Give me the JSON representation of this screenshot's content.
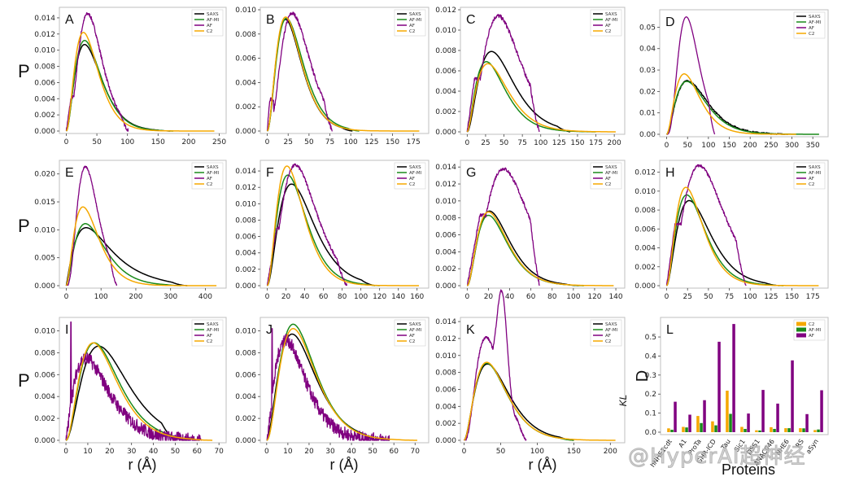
{
  "figure": {
    "row_ylabel": "P",
    "xlabel": "r (Å)",
    "watermark": "@HyperAI超神经",
    "colors": {
      "SAXS": "#000000",
      "AF-MI": "#1a8a1a",
      "AF": "#800080",
      "C2": "#f5a800"
    }
  },
  "chart_data": [
    {
      "panel": "A",
      "type": "line",
      "xlim": [
        0,
        250
      ],
      "ylim": [
        0,
        0.015
      ],
      "xticks": [
        0,
        50,
        100,
        150,
        200,
        250
      ],
      "xtick_labels": [
        "0",
        "50",
        "100",
        "150",
        "200",
        "250"
      ],
      "yticks": [
        0,
        0.002,
        0.004,
        0.006,
        0.008,
        0.01,
        0.012,
        0.014
      ],
      "ytick_labels": [
        "0.000",
        "0.002",
        "0.004",
        "0.006",
        "0.008",
        "0.010",
        "0.012",
        "0.014"
      ],
      "legend": [
        "SAXS",
        "AF-MI",
        "AF",
        "C2"
      ],
      "legend_loc": "top-right",
      "series": [
        {
          "name": "SAXS",
          "peak_x": 30,
          "peak_y": 0.0107,
          "x_end": 170,
          "shape": 1.9
        },
        {
          "name": "AF-MI",
          "peak_x": 30,
          "peak_y": 0.0112,
          "x_end": 175,
          "shape": 2.0
        },
        {
          "name": "AF",
          "peak_x": 35,
          "peak_y": 0.0145,
          "x_end": 102,
          "shape": 3.2,
          "noise": 0.0004,
          "shoulder": [
            8,
            0.0042
          ]
        },
        {
          "name": "C2",
          "peak_x": 28,
          "peak_y": 0.0122,
          "x_end": 242,
          "shape": 2.1
        }
      ]
    },
    {
      "panel": "B",
      "type": "line",
      "xlim": [
        0,
        185
      ],
      "ylim": [
        0,
        0.01
      ],
      "xticks": [
        0,
        25,
        50,
        75,
        100,
        125,
        150,
        175
      ],
      "xtick_labels": [
        "0",
        "25",
        "50",
        "75",
        "100",
        "125",
        "150",
        "175"
      ],
      "yticks": [
        0,
        0.002,
        0.004,
        0.006,
        0.008,
        0.01
      ],
      "ytick_labels": [
        "0.000",
        "0.002",
        "0.004",
        "0.006",
        "0.008",
        "0.010"
      ],
      "legend": [
        "SAXS",
        "AF-MI",
        "AF",
        "C2"
      ],
      "legend_loc": "top-right",
      "series": [
        {
          "name": "SAXS",
          "peak_x": 22,
          "peak_y": 0.0092,
          "x_end": 102,
          "shape": 2.1
        },
        {
          "name": "AF-MI",
          "peak_x": 23,
          "peak_y": 0.0093,
          "x_end": 110,
          "shape": 2.1
        },
        {
          "name": "AF",
          "peak_x": 30,
          "peak_y": 0.0097,
          "x_end": 78,
          "shape": 3.0,
          "noise": 0.0003,
          "shoulder": [
            3,
            0.0026
          ]
        },
        {
          "name": "C2",
          "peak_x": 22,
          "peak_y": 0.0094,
          "x_end": 182,
          "shape": 2.1
        }
      ]
    },
    {
      "panel": "C",
      "type": "line",
      "xlim": [
        0,
        205
      ],
      "ylim": [
        0,
        0.012
      ],
      "xticks": [
        0,
        25,
        50,
        75,
        100,
        125,
        150,
        175,
        200
      ],
      "xtick_labels": [
        "0",
        "25",
        "50",
        "75",
        "100",
        "125",
        "150",
        "175",
        "200"
      ],
      "yticks": [
        0,
        0.002,
        0.004,
        0.006,
        0.008,
        0.01,
        0.012
      ],
      "ytick_labels": [
        "0.000",
        "0.002",
        "0.004",
        "0.006",
        "0.008",
        "0.010",
        "0.012"
      ],
      "legend": [
        "SAXS",
        "AF-MI",
        "AF",
        "C2"
      ],
      "legend_loc": "top-right",
      "series": [
        {
          "name": "SAXS",
          "peak_x": 33,
          "peak_y": 0.0079,
          "x_end": 140,
          "shape": 1.9
        },
        {
          "name": "AF-MI",
          "peak_x": 26,
          "peak_y": 0.0069,
          "x_end": 175,
          "shape": 1.7
        },
        {
          "name": "AF",
          "peak_x": 42,
          "peak_y": 0.0114,
          "x_end": 98,
          "shape": 2.8,
          "noise": 0.0004,
          "shoulder": [
            10,
            0.0052
          ]
        },
        {
          "name": "C2",
          "peak_x": 28,
          "peak_y": 0.0067,
          "x_end": 202,
          "shape": 1.7
        }
      ]
    },
    {
      "panel": "D",
      "type": "line",
      "xlim": [
        0,
        370
      ],
      "ylim": [
        0,
        0.057
      ],
      "xticks": [
        0,
        50,
        100,
        150,
        200,
        250,
        300,
        350
      ],
      "xtick_labels": [
        "0",
        "50",
        "100",
        "150",
        "200",
        "250",
        "300",
        "350"
      ],
      "yticks": [
        0,
        0.01,
        0.02,
        0.03,
        0.04,
        0.05
      ],
      "ytick_labels": [
        "0.00",
        "0.01",
        "0.02",
        "0.03",
        "0.04",
        "0.05"
      ],
      "legend": [
        "SAXS",
        "AF-MI",
        "AF",
        "C2"
      ],
      "legend_loc": "top-right",
      "series": [
        {
          "name": "SAXS",
          "peak_x": 50,
          "peak_y": 0.025,
          "x_end": 290,
          "shape": 1.8,
          "noise": 0.0006
        },
        {
          "name": "AF-MI",
          "peak_x": 48,
          "peak_y": 0.0247,
          "x_end": 365,
          "shape": 1.8
        },
        {
          "name": "AF",
          "peak_x": 47,
          "peak_y": 0.0548,
          "x_end": 115,
          "shape": 3.4
        },
        {
          "name": "C2",
          "peak_x": 42,
          "peak_y": 0.0282,
          "x_end": 310,
          "shape": 2.0
        }
      ]
    },
    {
      "panel": "E",
      "type": "line",
      "xlim": [
        0,
        440
      ],
      "ylim": [
        0,
        0.022
      ],
      "xticks": [
        0,
        100,
        200,
        300,
        400
      ],
      "xtick_labels": [
        "0",
        "100",
        "200",
        "300",
        "400"
      ],
      "yticks": [
        0,
        0.005,
        0.01,
        0.015,
        0.02
      ],
      "ytick_labels": [
        "0.000",
        "0.005",
        "0.010",
        "0.015",
        "0.020"
      ],
      "legend": [
        "SAXS",
        "AF-MI",
        "AF",
        "C2"
      ],
      "legend_loc": "top-right",
      "series": [
        {
          "name": "SAXS",
          "peak_x": 55,
          "peak_y": 0.0088,
          "x_end": 348,
          "shape": 1.2,
          "tail": 0.0025
        },
        {
          "name": "AF-MI",
          "peak_x": 55,
          "peak_y": 0.0111,
          "x_end": 330,
          "shape": 1.6
        },
        {
          "name": "AF",
          "peak_x": 55,
          "peak_y": 0.0213,
          "x_end": 145,
          "shape": 3.2,
          "noise": 0.0003
        },
        {
          "name": "C2",
          "peak_x": 48,
          "peak_y": 0.0141,
          "x_end": 432,
          "shape": 1.8
        }
      ]
    },
    {
      "panel": "F",
      "type": "line",
      "xlim": [
        0,
        165
      ],
      "ylim": [
        0,
        0.015
      ],
      "xticks": [
        0,
        20,
        40,
        60,
        80,
        100,
        120,
        140,
        160
      ],
      "xtick_labels": [
        "0",
        "20",
        "40",
        "60",
        "80",
        "100",
        "120",
        "140",
        "160"
      ],
      "yticks": [
        0,
        0.002,
        0.004,
        0.006,
        0.008,
        0.01,
        0.012,
        0.014
      ],
      "ytick_labels": [
        "0.000",
        "0.002",
        "0.004",
        "0.006",
        "0.008",
        "0.010",
        "0.012",
        "0.014"
      ],
      "legend": [
        "SAXS",
        "AF-MI",
        "AF",
        "C2"
      ],
      "legend_loc": "top-right",
      "series": [
        {
          "name": "SAXS",
          "peak_x": 26,
          "peak_y": 0.0124,
          "x_end": 115,
          "shape": 1.9
        },
        {
          "name": "AF-MI",
          "peak_x": 22,
          "peak_y": 0.0135,
          "x_end": 120,
          "shape": 2.0
        },
        {
          "name": "AF",
          "peak_x": 30,
          "peak_y": 0.0147,
          "x_end": 85,
          "shape": 2.6,
          "noise": 0.0004,
          "shoulder": [
            10,
            0.007
          ]
        },
        {
          "name": "C2",
          "peak_x": 21,
          "peak_y": 0.0146,
          "x_end": 162,
          "shape": 2.1
        }
      ]
    },
    {
      "panel": "G",
      "type": "line",
      "xlim": [
        0,
        142
      ],
      "ylim": [
        0,
        0.0145
      ],
      "xticks": [
        0,
        20,
        40,
        60,
        80,
        100,
        120,
        140
      ],
      "xtick_labels": [
        "0",
        "20",
        "40",
        "60",
        "80",
        "100",
        "120",
        "140"
      ],
      "yticks": [
        0,
        0.002,
        0.004,
        0.006,
        0.008,
        0.01,
        0.012,
        0.014
      ],
      "ytick_labels": [
        "0.000",
        "0.002",
        "0.004",
        "0.006",
        "0.008",
        "0.010",
        "0.012",
        "0.014"
      ],
      "legend": [
        "SAXS",
        "AF-MI",
        "AF",
        "C2"
      ],
      "legend_loc": "top-right",
      "series": [
        {
          "name": "SAXS",
          "peak_x": 21,
          "peak_y": 0.0088,
          "x_end": 105,
          "shape": 2.0
        },
        {
          "name": "AF-MI",
          "peak_x": 20,
          "peak_y": 0.0083,
          "x_end": 110,
          "shape": 2.0
        },
        {
          "name": "AF",
          "peak_x": 34,
          "peak_y": 0.0138,
          "x_end": 68,
          "shape": 3.0,
          "noise": 0.0004,
          "shoulder": [
            12,
            0.0083
          ]
        },
        {
          "name": "C2",
          "peak_x": 20,
          "peak_y": 0.0087,
          "x_end": 138,
          "shape": 2.0
        }
      ]
    },
    {
      "panel": "H",
      "type": "line",
      "xlim": [
        0,
        185
      ],
      "ylim": [
        0,
        0.013
      ],
      "xticks": [
        0,
        25,
        50,
        75,
        100,
        125,
        150,
        175
      ],
      "xtick_labels": [
        "0",
        "25",
        "50",
        "75",
        "100",
        "125",
        "150",
        "175"
      ],
      "yticks": [
        0,
        0.002,
        0.004,
        0.006,
        0.008,
        0.01,
        0.012
      ],
      "ytick_labels": [
        "0.000",
        "0.002",
        "0.004",
        "0.006",
        "0.008",
        "0.010",
        "0.012"
      ],
      "legend": [
        "SAXS",
        "AF-MI",
        "AF",
        "C2"
      ],
      "legend_loc": "top-right",
      "series": [
        {
          "name": "SAXS",
          "peak_x": 27,
          "peak_y": 0.009,
          "x_end": 135,
          "shape": 1.8
        },
        {
          "name": "AF-MI",
          "peak_x": 24,
          "peak_y": 0.0096,
          "x_end": 140,
          "shape": 1.9
        },
        {
          "name": "AF",
          "peak_x": 39,
          "peak_y": 0.0127,
          "x_end": 95,
          "shape": 2.6,
          "noise": 0.0003,
          "shoulder": [
            10,
            0.0065
          ]
        },
        {
          "name": "C2",
          "peak_x": 23,
          "peak_y": 0.0104,
          "x_end": 182,
          "shape": 2.0
        }
      ]
    },
    {
      "panel": "I",
      "type": "line",
      "xlim": [
        -3,
        70
      ],
      "ylim": [
        0,
        0.011
      ],
      "xticks": [
        0,
        10,
        20,
        30,
        40,
        50,
        60,
        70
      ],
      "xtick_labels": [
        "0",
        "10",
        "20",
        "30",
        "40",
        "50",
        "60",
        "70"
      ],
      "yticks": [
        0,
        0.002,
        0.004,
        0.006,
        0.008,
        0.01
      ],
      "ytick_labels": [
        "0.000",
        "0.002",
        "0.004",
        "0.006",
        "0.008",
        "0.010"
      ],
      "legend": [
        "SAXS",
        "AF-MI",
        "AF",
        "C2"
      ],
      "legend_loc": "top-right",
      "series": [
        {
          "name": "SAXS",
          "peak_x": 15,
          "peak_y": 0.0086,
          "x_end": 50,
          "shape": 2.0
        },
        {
          "name": "AF-MI",
          "peak_x": 13,
          "peak_y": 0.0089,
          "x_end": 55,
          "shape": 2.1
        },
        {
          "name": "AF",
          "peak_x": 9,
          "peak_y": 0.0075,
          "x_end": 62,
          "shape": 1.3,
          "noise": 0.0012,
          "spike": [
            2.3,
            0.0108
          ]
        },
        {
          "name": "C2",
          "peak_x": 12.5,
          "peak_y": 0.0089,
          "x_end": 67,
          "shape": 2.1
        }
      ]
    },
    {
      "panel": "J",
      "type": "line",
      "xlim": [
        -3,
        73
      ],
      "ylim": [
        0,
        0.011
      ],
      "xticks": [
        0,
        10,
        20,
        30,
        40,
        50,
        60,
        70
      ],
      "xtick_labels": [
        "0",
        "10",
        "20",
        "30",
        "40",
        "50",
        "60",
        "70"
      ],
      "yticks": [
        0,
        0.002,
        0.004,
        0.006,
        0.008,
        0.01
      ],
      "ytick_labels": [
        "0.000",
        "0.002",
        "0.004",
        "0.006",
        "0.008",
        "0.010"
      ],
      "legend": [
        "SAXS",
        "AF-MI",
        "AF",
        "C2"
      ],
      "legend_loc": "top-right",
      "series": [
        {
          "name": "SAXS",
          "peak_x": 12,
          "peak_y": 0.0097,
          "x_end": 52,
          "shape": 1.9
        },
        {
          "name": "AF-MI",
          "peak_x": 12.5,
          "peak_y": 0.0106,
          "x_end": 58,
          "shape": 2.2
        },
        {
          "name": "AF",
          "peak_x": 9,
          "peak_y": 0.0092,
          "x_end": 58,
          "shape": 1.6,
          "noise": 0.0012,
          "spike": [
            2.5,
            0.0102
          ]
        },
        {
          "name": "C2",
          "peak_x": 12.5,
          "peak_y": 0.0102,
          "x_end": 71,
          "shape": 2.2
        }
      ]
    },
    {
      "panel": "K",
      "type": "line",
      "xlim": [
        -5,
        210
      ],
      "ylim": [
        0,
        0.0142
      ],
      "xticks": [
        0,
        50,
        100,
        150,
        200
      ],
      "xtick_labels": [
        "0",
        "50",
        "100",
        "150",
        "200"
      ],
      "yticks": [
        0,
        0.002,
        0.004,
        0.006,
        0.008,
        0.01,
        0.012,
        0.014
      ],
      "ytick_labels": [
        "0.000",
        "0.002",
        "0.004",
        "0.006",
        "0.008",
        "0.010",
        "0.012",
        "0.014"
      ],
      "legend": [
        "SAXS",
        "AF-MI",
        "AF",
        "C2"
      ],
      "legend_loc": "top-right",
      "series": [
        {
          "name": "SAXS",
          "peak_x": 32,
          "peak_y": 0.009,
          "x_end": 150,
          "shape": 1.9
        },
        {
          "name": "AF-MI",
          "peak_x": 31,
          "peak_y": 0.0091,
          "x_end": 150,
          "shape": 2.0
        },
        {
          "name": "AF",
          "peak_x": 30,
          "peak_y": 0.0135,
          "x_end": 85,
          "shape": 3.0,
          "noise": 0.0003,
          "second_peak": [
            52,
            0.0121
          ]
        },
        {
          "name": "C2",
          "peak_x": 31,
          "peak_y": 0.0092,
          "x_end": 207,
          "shape": 2.0
        }
      ]
    },
    {
      "panel": "L",
      "type": "bar",
      "xlabel": "Proteins",
      "ylabel": "D_KL",
      "ylim": [
        0,
        0.59
      ],
      "yticks": [
        0,
        0.1,
        0.2,
        0.3,
        0.4,
        0.5
      ],
      "ytick_labels": [
        "0.0",
        "0.1",
        "0.2",
        "0.3",
        "0.4",
        "0.5"
      ],
      "categories": [
        "hNHE1cdt",
        "A1",
        "ProTa",
        "GHR-ICD",
        "Tau",
        "Sic1",
        "DSS1",
        "ANAC046",
        "NHE6",
        "RS",
        "aSyn"
      ],
      "legend": [
        "C2",
        "AF-MI",
        "AF"
      ],
      "legend_loc": "top-right",
      "series": [
        {
          "name": "C2",
          "values": [
            0.02,
            0.028,
            0.085,
            0.057,
            0.218,
            0.028,
            0.01,
            0.026,
            0.021,
            0.021,
            0.011
          ]
        },
        {
          "name": "AF-MI",
          "values": [
            0.013,
            0.025,
            0.048,
            0.036,
            0.096,
            0.017,
            0.009,
            0.017,
            0.021,
            0.02,
            0.014
          ]
        },
        {
          "name": "AF",
          "values": [
            0.16,
            0.092,
            0.168,
            0.475,
            0.568,
            0.098,
            0.222,
            0.15,
            0.377,
            0.095,
            0.22
          ]
        }
      ]
    }
  ]
}
